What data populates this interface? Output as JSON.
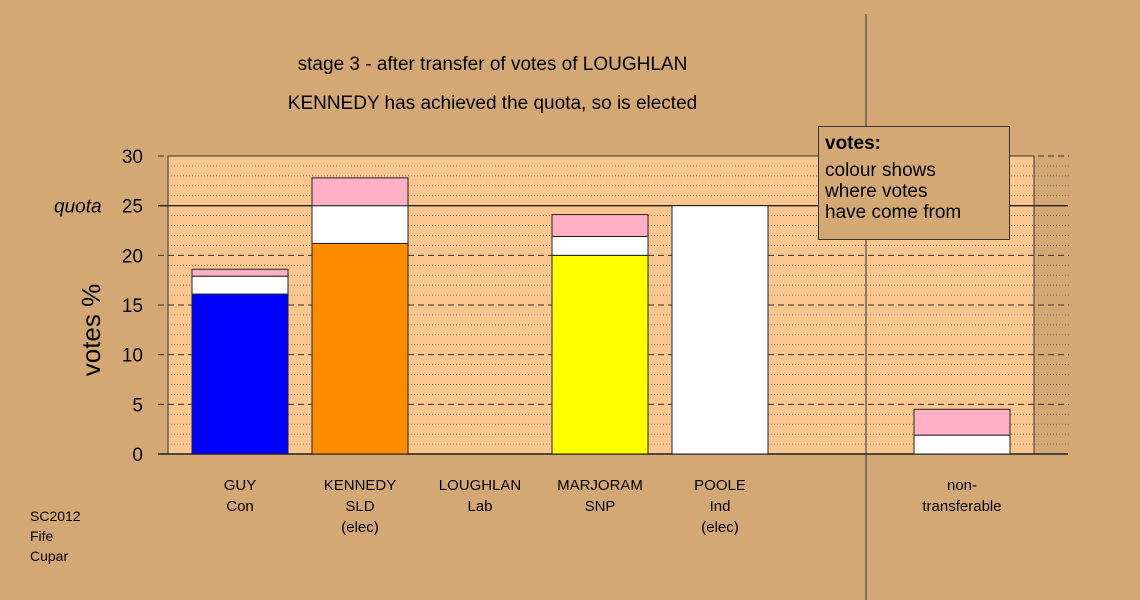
{
  "title_line1": "stage 3 - after transfer of votes of LOUGHLAN",
  "title_line2": "KENNEDY has achieved the quota, so is elected",
  "legend": {
    "heading": "votes:",
    "text": "colour shows\nwhere votes\nhave come from"
  },
  "credit": "SC2012\nFife\nCupar",
  "colors": {
    "background": "#d4a874",
    "plot_area": "#f9c68f",
    "con": "#0000ff",
    "sld": "#ff8c00",
    "snp": "#ffff00",
    "ind": "#ffffff",
    "pink": "#ffb0c4",
    "white": "#ffffff"
  },
  "chart_data": {
    "type": "bar",
    "ylabel": "votes %",
    "ylim": [
      0,
      30
    ],
    "yticks": [
      0,
      5,
      10,
      15,
      20,
      25,
      30
    ],
    "quota": 25,
    "quota_label": "quota",
    "candidates": [
      {
        "name": "GUY",
        "party": "Con",
        "note": "",
        "color": "#0000ff",
        "segments": [
          {
            "value": 16.1,
            "color": "#0000ff"
          },
          {
            "value": 1.8,
            "color": "#ffffff"
          },
          {
            "value": 0.7,
            "color": "#ffb0c4"
          }
        ]
      },
      {
        "name": "KENNEDY",
        "party": "SLD",
        "note": "(elec)",
        "color": "#ff8c00",
        "segments": [
          {
            "value": 21.2,
            "color": "#ff8c00"
          },
          {
            "value": 3.8,
            "color": "#ffffff"
          },
          {
            "value": 2.8,
            "color": "#ffb0c4"
          }
        ]
      },
      {
        "name": "LOUGHLAN",
        "party": "Lab",
        "note": "",
        "color": "#ff0000",
        "segments": []
      },
      {
        "name": "MARJORAM",
        "party": "SNP",
        "note": "",
        "color": "#ffff00",
        "segments": [
          {
            "value": 20.0,
            "color": "#ffff00"
          },
          {
            "value": 1.9,
            "color": "#ffffff"
          },
          {
            "value": 2.2,
            "color": "#ffb0c4"
          }
        ]
      },
      {
        "name": "POOLE",
        "party": "Ind",
        "note": "(elec)",
        "color": "#ffffff",
        "segments": [
          {
            "value": 25.0,
            "color": "#ffffff"
          }
        ]
      }
    ],
    "nontransferable": {
      "label_line1": "non-",
      "label_line2": "transferable",
      "segments": [
        {
          "value": 1.9,
          "color": "#ffffff"
        },
        {
          "value": 2.6,
          "color": "#ffb0c4"
        }
      ]
    }
  }
}
